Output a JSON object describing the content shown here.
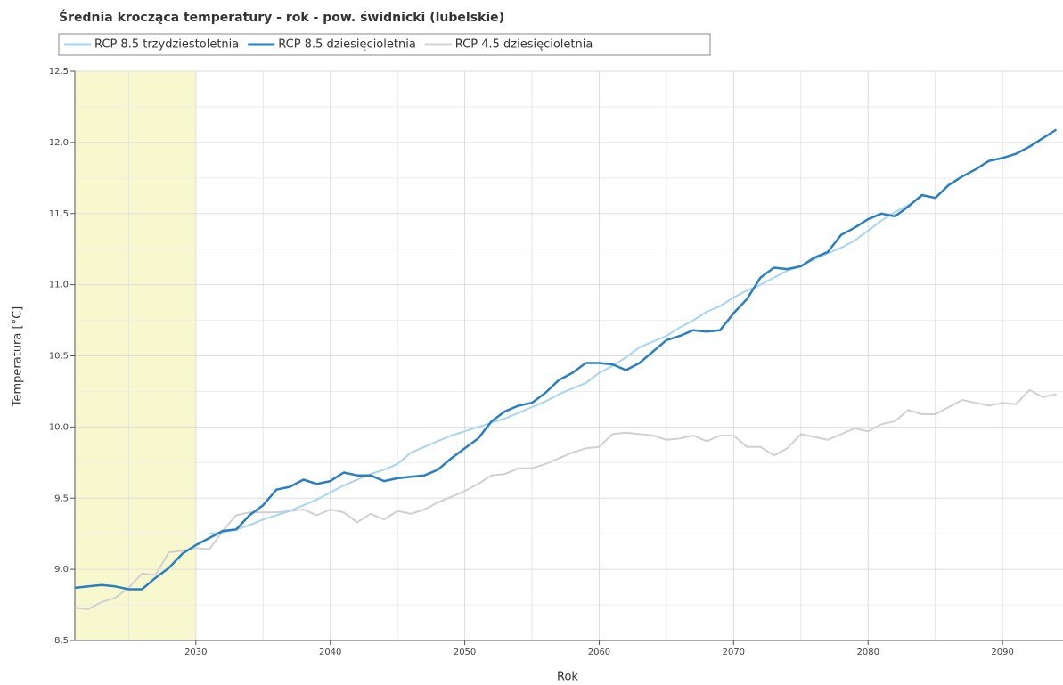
{
  "chart_data": {
    "type": "line",
    "title": "Średnia krocząca temperatury - rok - pow. świdnicki (lubelskie)",
    "xlabel": "Rok",
    "ylabel": "Temperatura [°C]",
    "x": [
      2021,
      2022,
      2023,
      2024,
      2025,
      2026,
      2027,
      2028,
      2029,
      2030,
      2031,
      2032,
      2033,
      2034,
      2035,
      2036,
      2037,
      2038,
      2039,
      2040,
      2041,
      2042,
      2043,
      2044,
      2045,
      2046,
      2047,
      2048,
      2049,
      2050,
      2051,
      2052,
      2053,
      2054,
      2055,
      2056,
      2057,
      2058,
      2059,
      2060,
      2061,
      2062,
      2063,
      2064,
      2065,
      2066,
      2067,
      2068,
      2069,
      2070,
      2071,
      2072,
      2073,
      2074,
      2075,
      2076,
      2077,
      2078,
      2079,
      2080,
      2081,
      2082,
      2083,
      2084,
      2085,
      2086,
      2087,
      2088,
      2089,
      2090,
      2091,
      2092,
      2093,
      2094
    ],
    "series": [
      {
        "name": "RCP 8.5 trzydziestoletnia",
        "color": "#a6d4f2",
        "values": [
          null,
          null,
          null,
          null,
          null,
          null,
          null,
          null,
          null,
          null,
          9.25,
          9.26,
          9.28,
          9.31,
          9.35,
          9.38,
          9.41,
          9.45,
          9.49,
          9.54,
          9.59,
          9.63,
          9.67,
          9.7,
          9.74,
          9.82,
          9.86,
          9.9,
          9.94,
          9.97,
          10.0,
          10.03,
          10.06,
          10.1,
          10.14,
          10.18,
          10.23,
          10.27,
          10.31,
          10.38,
          10.43,
          10.49,
          10.56,
          10.6,
          10.64,
          10.7,
          10.75,
          10.81,
          10.85,
          10.91,
          10.96,
          11.0,
          11.05,
          11.1,
          11.13,
          11.18,
          11.22,
          11.26,
          11.31,
          11.38,
          11.45,
          11.51,
          11.56,
          11.62,
          null,
          null,
          null,
          null,
          null,
          null,
          null,
          null,
          null,
          null
        ]
      },
      {
        "name": "RCP 8.5 dziesięcioletnia",
        "color": "#2a7fc1",
        "values": [
          8.87,
          8.88,
          8.89,
          8.88,
          8.86,
          8.86,
          8.94,
          9.01,
          9.11,
          9.17,
          9.22,
          9.27,
          9.28,
          9.38,
          9.45,
          9.56,
          9.58,
          9.63,
          9.6,
          9.62,
          9.68,
          9.66,
          9.66,
          9.62,
          9.64,
          9.65,
          9.66,
          9.7,
          9.78,
          9.85,
          9.92,
          10.04,
          10.11,
          10.15,
          10.17,
          10.24,
          10.33,
          10.38,
          10.45,
          10.45,
          10.44,
          10.4,
          10.45,
          10.53,
          10.61,
          10.64,
          10.68,
          10.67,
          10.68,
          10.8,
          10.9,
          11.05,
          11.12,
          11.11,
          11.13,
          11.19,
          11.23,
          11.35,
          11.4,
          11.46,
          11.5,
          11.48,
          11.55,
          11.63,
          11.61,
          11.7,
          11.76,
          11.81,
          11.87,
          11.89,
          11.92,
          11.97,
          12.03,
          12.09
        ]
      },
      {
        "name": "RCP 4.5 dziesięcioletnia",
        "color": "#d0d0d0",
        "values": [
          8.73,
          8.72,
          8.77,
          8.8,
          8.87,
          8.97,
          8.96,
          9.12,
          9.13,
          9.15,
          9.14,
          9.27,
          9.38,
          9.4,
          9.4,
          9.4,
          9.41,
          9.42,
          9.38,
          9.42,
          9.4,
          9.33,
          9.39,
          9.35,
          9.41,
          9.39,
          9.42,
          9.47,
          9.51,
          9.55,
          9.6,
          9.66,
          9.67,
          9.71,
          9.71,
          9.74,
          9.78,
          9.82,
          9.85,
          9.86,
          9.95,
          9.96,
          9.95,
          9.94,
          9.91,
          9.92,
          9.94,
          9.9,
          9.94,
          9.94,
          9.86,
          9.86,
          9.8,
          9.85,
          9.95,
          9.93,
          9.91,
          9.95,
          9.99,
          9.97,
          10.02,
          10.04,
          10.12,
          10.09,
          10.09,
          10.14,
          10.19,
          10.17,
          10.15,
          10.17,
          10.16,
          10.26,
          10.21,
          10.23
        ]
      }
    ],
    "xlim": [
      2021,
      2094.5
    ],
    "xticks": [
      2030,
      2040,
      2050,
      2060,
      2070,
      2080,
      2090
    ],
    "xminor": [
      2025,
      2035,
      2045,
      2055,
      2065,
      2075,
      2085
    ],
    "ylim": [
      8.5,
      12.5
    ],
    "yticks": [
      {
        "value": 8.5,
        "label": "8,5"
      },
      {
        "value": 9,
        "label": "9,0"
      },
      {
        "value": 9.5,
        "label": "9,5"
      },
      {
        "value": 10,
        "label": "10,0"
      },
      {
        "value": 10.5,
        "label": "10,5"
      },
      {
        "value": 11,
        "label": "11,0"
      },
      {
        "value": 11.5,
        "label": "11,5"
      },
      {
        "value": 12,
        "label": "12,0"
      },
      {
        "value": 12.5,
        "label": "12,5"
      }
    ],
    "yminor": [
      8.75,
      9.25,
      9.75,
      10.25,
      10.75,
      11.25,
      11.75,
      12.25
    ],
    "shaded_range": [
      2021,
      2030
    ],
    "shaded_color": "#f8f8cf",
    "grid": true,
    "legend": "top-left"
  }
}
